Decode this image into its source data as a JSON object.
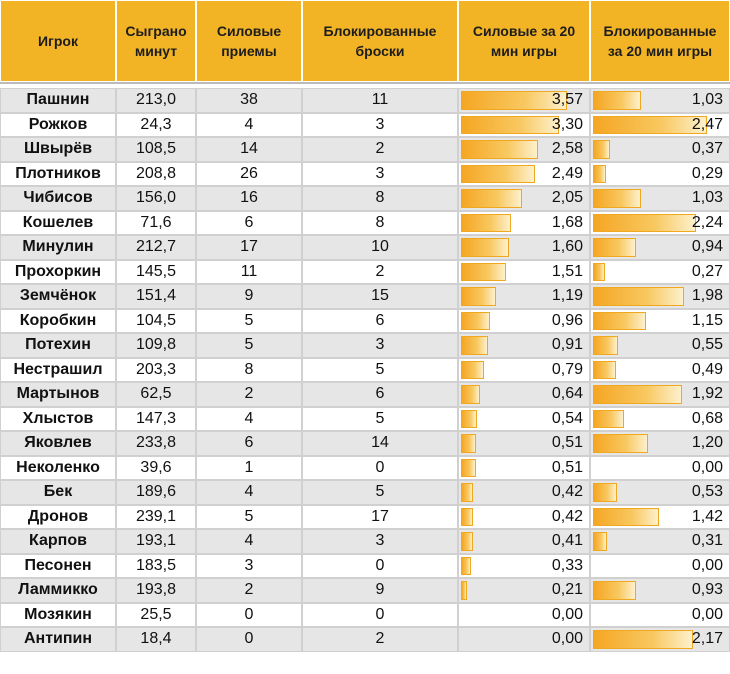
{
  "headers": [
    "Игрок",
    "Сыграно\nминут",
    "Силовые\nприемы",
    "Блокированные\nброски",
    "Силовые за 20\nмин игры",
    "Блокированные\nза 20 мин игры"
  ],
  "bar_max": {
    "hits": 3.57,
    "blocks": 2.47
  },
  "rows": [
    {
      "name": "Пашнин",
      "minutes": "213,0",
      "hits": "38",
      "blocks": "11",
      "hits20": "3,57",
      "blocks20": "1,03",
      "h": 3.57,
      "b": 1.03
    },
    {
      "name": "Рожков",
      "minutes": "24,3",
      "hits": "4",
      "blocks": "3",
      "hits20": "3,30",
      "blocks20": "2,47",
      "h": 3.3,
      "b": 2.47
    },
    {
      "name": "Швырёв",
      "minutes": "108,5",
      "hits": "14",
      "blocks": "2",
      "hits20": "2,58",
      "blocks20": "0,37",
      "h": 2.58,
      "b": 0.37
    },
    {
      "name": "Плотников",
      "minutes": "208,8",
      "hits": "26",
      "blocks": "3",
      "hits20": "2,49",
      "blocks20": "0,29",
      "h": 2.49,
      "b": 0.29
    },
    {
      "name": "Чибисов",
      "minutes": "156,0",
      "hits": "16",
      "blocks": "8",
      "hits20": "2,05",
      "blocks20": "1,03",
      "h": 2.05,
      "b": 1.03
    },
    {
      "name": "Кошелев",
      "minutes": "71,6",
      "hits": "6",
      "blocks": "8",
      "hits20": "1,68",
      "blocks20": "2,24",
      "h": 1.68,
      "b": 2.24
    },
    {
      "name": "Минулин",
      "minutes": "212,7",
      "hits": "17",
      "blocks": "10",
      "hits20": "1,60",
      "blocks20": "0,94",
      "h": 1.6,
      "b": 0.94
    },
    {
      "name": "Прохоркин",
      "minutes": "145,5",
      "hits": "11",
      "blocks": "2",
      "hits20": "1,51",
      "blocks20": "0,27",
      "h": 1.51,
      "b": 0.27
    },
    {
      "name": "Земчёнок",
      "minutes": "151,4",
      "hits": "9",
      "blocks": "15",
      "hits20": "1,19",
      "blocks20": "1,98",
      "h": 1.19,
      "b": 1.98
    },
    {
      "name": "Коробкин",
      "minutes": "104,5",
      "hits": "5",
      "blocks": "6",
      "hits20": "0,96",
      "blocks20": "1,15",
      "h": 0.96,
      "b": 1.15
    },
    {
      "name": "Потехин",
      "minutes": "109,8",
      "hits": "5",
      "blocks": "3",
      "hits20": "0,91",
      "blocks20": "0,55",
      "h": 0.91,
      "b": 0.55
    },
    {
      "name": "Нестрашил",
      "minutes": "203,3",
      "hits": "8",
      "blocks": "5",
      "hits20": "0,79",
      "blocks20": "0,49",
      "h": 0.79,
      "b": 0.49
    },
    {
      "name": "Мартынов",
      "minutes": "62,5",
      "hits": "2",
      "blocks": "6",
      "hits20": "0,64",
      "blocks20": "1,92",
      "h": 0.64,
      "b": 1.92
    },
    {
      "name": "Хлыстов",
      "minutes": "147,3",
      "hits": "4",
      "blocks": "5",
      "hits20": "0,54",
      "blocks20": "0,68",
      "h": 0.54,
      "b": 0.68
    },
    {
      "name": "Яковлев",
      "minutes": "233,8",
      "hits": "6",
      "blocks": "14",
      "hits20": "0,51",
      "blocks20": "1,20",
      "h": 0.51,
      "b": 1.2
    },
    {
      "name": "Неколенко",
      "minutes": "39,6",
      "hits": "1",
      "blocks": "0",
      "hits20": "0,51",
      "blocks20": "0,00",
      "h": 0.51,
      "b": 0
    },
    {
      "name": "Бек",
      "minutes": "189,6",
      "hits": "4",
      "blocks": "5",
      "hits20": "0,42",
      "blocks20": "0,53",
      "h": 0.42,
      "b": 0.53
    },
    {
      "name": "Дронов",
      "minutes": "239,1",
      "hits": "5",
      "blocks": "17",
      "hits20": "0,42",
      "blocks20": "1,42",
      "h": 0.42,
      "b": 1.42
    },
    {
      "name": "Карпов",
      "minutes": "193,1",
      "hits": "4",
      "blocks": "3",
      "hits20": "0,41",
      "blocks20": "0,31",
      "h": 0.41,
      "b": 0.31
    },
    {
      "name": "Песонен",
      "minutes": "183,5",
      "hits": "3",
      "blocks": "0",
      "hits20": "0,33",
      "blocks20": "0,00",
      "h": 0.33,
      "b": 0
    },
    {
      "name": "Ламмикко",
      "minutes": "193,8",
      "hits": "2",
      "blocks": "9",
      "hits20": "0,21",
      "blocks20": "0,93",
      "h": 0.21,
      "b": 0.93
    },
    {
      "name": "Мозякин",
      "minutes": "25,5",
      "hits": "0",
      "blocks": "0",
      "hits20": "0,00",
      "blocks20": "0,00",
      "h": 0,
      "b": 0
    },
    {
      "name": "Антипин",
      "minutes": "18,4",
      "hits": "0",
      "blocks": "2",
      "hits20": "0,00",
      "blocks20": "2,17",
      "h": 0,
      "b": 2.17
    }
  ]
}
